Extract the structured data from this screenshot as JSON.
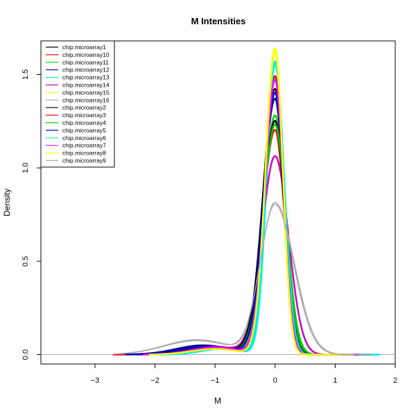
{
  "chart_data": {
    "type": "line",
    "title": "M Intensities",
    "xlabel": "M",
    "ylabel": "Density",
    "xlim": [
      -3.9,
      2.0
    ],
    "ylim": [
      -0.05,
      1.68
    ],
    "x_ticks": [
      -3,
      -2,
      -1,
      0,
      1,
      2
    ],
    "y_ticks": [
      0.0,
      0.5,
      1.0,
      1.5
    ],
    "x_tick_labels": [
      "−3",
      "−2",
      "−1",
      "0",
      "1",
      "2"
    ],
    "y_tick_labels": [
      "0.0",
      "0.5",
      "1.0",
      "1.5"
    ],
    "grid": false,
    "legend_position": "top-left",
    "baseline": 0,
    "series": [
      {
        "name": "chip.microarray1",
        "color": "#000000",
        "width": 2.5,
        "peak": 1.42,
        "sdl": 0.2,
        "sdr": 0.14,
        "tail": 0.035,
        "tailmu": -1.0,
        "tailsd": 0.45,
        "xmin": -2.3,
        "xmax": 1.4
      },
      {
        "name": "chip.microarray10",
        "color": "#ff0000",
        "width": 2.5,
        "peak": 1.2,
        "sdl": 0.21,
        "sdr": 0.16,
        "tail": 0.045,
        "tailmu": -1.1,
        "tailsd": 0.5,
        "xmin": -2.7,
        "xmax": 1.5
      },
      {
        "name": "chip.microarray11",
        "color": "#00cd00",
        "width": 2.5,
        "peak": 1.28,
        "sdl": 0.19,
        "sdr": 0.17,
        "tail": 0.03,
        "tailmu": -1.0,
        "tailsd": 0.4,
        "xmin": -2.2,
        "xmax": 1.5
      },
      {
        "name": "chip.microarray12",
        "color": "#00008b",
        "width": 2.5,
        "peak": 1.37,
        "sdl": 0.2,
        "sdr": 0.15,
        "tail": 0.05,
        "tailmu": -1.2,
        "tailsd": 0.45,
        "xmin": -2.5,
        "xmax": 1.4
      },
      {
        "name": "chip.microarray13",
        "color": "#00eeee",
        "width": 2.5,
        "peak": 1.57,
        "sdl": 0.14,
        "sdr": 0.15,
        "tail": 0.03,
        "tailmu": -0.9,
        "tailsd": 0.35,
        "xmin": -2.0,
        "xmax": 1.75
      },
      {
        "name": "chip.microarray14",
        "color": "#cd00cd",
        "width": 2.5,
        "peak": 1.06,
        "sdl": 0.22,
        "sdr": 0.22,
        "tail": 0.04,
        "tailmu": -1.0,
        "tailsd": 0.45,
        "xmin": -2.2,
        "xmax": 1.6
      },
      {
        "name": "chip.microarray15",
        "color": "#ffff00",
        "width": 2.5,
        "peak": 1.64,
        "sdl": 0.16,
        "sdr": 0.13,
        "tail": 0.03,
        "tailmu": -1.0,
        "tailsd": 0.4,
        "xmin": -2.1,
        "xmax": 1.3
      },
      {
        "name": "chip.microarray16",
        "color": "#aaaaaa",
        "width": 1.5,
        "peak": 0.81,
        "sdl": 0.24,
        "sdr": 0.32,
        "tail": 0.08,
        "tailmu": -1.3,
        "tailsd": 0.55,
        "xmin": -2.7,
        "xmax": 1.7
      },
      {
        "name": "chip.microarray2",
        "color": "#000000",
        "width": 2.5,
        "peak": 1.25,
        "sdl": 0.21,
        "sdr": 0.16,
        "tail": 0.04,
        "tailmu": -1.1,
        "tailsd": 0.45,
        "xmin": -2.3,
        "xmax": 1.4
      },
      {
        "name": "chip.microarray3",
        "color": "#ff0000",
        "width": 2.5,
        "peak": 1.49,
        "sdl": 0.17,
        "sdr": 0.14,
        "tail": 0.045,
        "tailmu": -1.1,
        "tailsd": 0.45,
        "xmin": -2.3,
        "xmax": 1.3
      },
      {
        "name": "chip.microarray4",
        "color": "#00cd00",
        "width": 2.5,
        "peak": 1.23,
        "sdl": 0.2,
        "sdr": 0.18,
        "tail": 0.035,
        "tailmu": -1.0,
        "tailsd": 0.4,
        "xmin": -2.1,
        "xmax": 1.5
      },
      {
        "name": "chip.microarray5",
        "color": "#0000cd",
        "width": 2.5,
        "peak": 1.4,
        "sdl": 0.19,
        "sdr": 0.15,
        "tail": 0.045,
        "tailmu": -1.1,
        "tailsd": 0.45,
        "xmin": -2.4,
        "xmax": 1.4
      },
      {
        "name": "chip.microarray6",
        "color": "#00eeee",
        "width": 2.5,
        "peak": 1.55,
        "sdl": 0.15,
        "sdr": 0.15,
        "tail": 0.03,
        "tailmu": -0.9,
        "tailsd": 0.35,
        "xmin": -2.0,
        "xmax": 1.7
      },
      {
        "name": "chip.microarray7",
        "color": "#ff00ff",
        "width": 2.5,
        "peak": 1.47,
        "sdl": 0.17,
        "sdr": 0.14,
        "tail": 0.04,
        "tailmu": -1.0,
        "tailsd": 0.4,
        "xmin": -2.2,
        "xmax": 1.4
      },
      {
        "name": "chip.microarray8",
        "color": "#ffff00",
        "width": 2.5,
        "peak": 1.62,
        "sdl": 0.16,
        "sdr": 0.13,
        "tail": 0.03,
        "tailmu": -1.0,
        "tailsd": 0.4,
        "xmin": -2.1,
        "xmax": 1.3
      },
      {
        "name": "chip.microarray9",
        "color": "#aaaaaa",
        "width": 1.5,
        "peak": 0.8,
        "sdl": 0.25,
        "sdr": 0.31,
        "tail": 0.075,
        "tailmu": -1.3,
        "tailsd": 0.55,
        "xmin": -2.6,
        "xmax": 1.6
      }
    ]
  }
}
